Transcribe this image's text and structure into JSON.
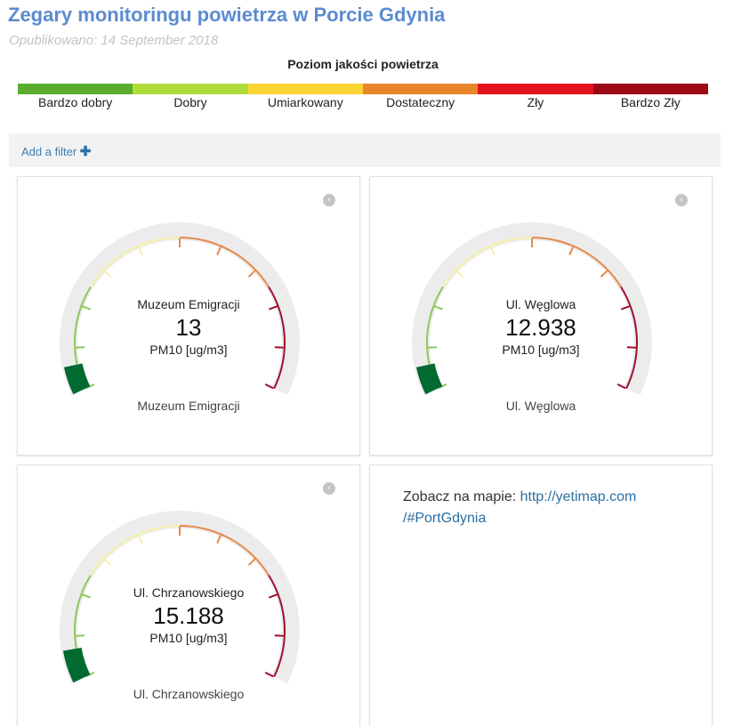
{
  "header": {
    "title": "Zegary monitoringu powietrza w Porcie Gdynia",
    "published": "Opublikowano: 14 September 2018"
  },
  "legend": {
    "title": "Poziom jakości powietrza",
    "levels": [
      {
        "label": "Bardzo dobry",
        "color": "#5aad2e"
      },
      {
        "label": "Dobry",
        "color": "#b0dc3c"
      },
      {
        "label": "Umiarkowany",
        "color": "#fcd535"
      },
      {
        "label": "Dostateczny",
        "color": "#e7862a"
      },
      {
        "label": "Zły",
        "color": "#e3141c"
      },
      {
        "label": "Bardzo Zły",
        "color": "#9a0914"
      }
    ]
  },
  "filter": {
    "label": "Add a filter",
    "icon": "plus-icon",
    "icon_glyph": "✚"
  },
  "back_icon": {
    "name": "back-circle-icon",
    "glyph": "‹"
  },
  "gauges": [
    {
      "station": "Muzeum Emigracji",
      "value": "13",
      "unit": "PM10 [ug/m3]",
      "caption": "Muzeum Emigracji",
      "fill_fraction": 0.06
    },
    {
      "station": "Ul. Węglowa",
      "value": "12.938",
      "unit": "PM10 [ug/m3]",
      "caption": "Ul. Węglowa",
      "fill_fraction": 0.06
    },
    {
      "station": "Ul. Chrzanowskiego",
      "value": "15.188",
      "unit": "PM10 [ug/m3]",
      "caption": "Ul. Chrzanowskiego",
      "fill_fraction": 0.07
    }
  ],
  "map_card": {
    "text": "Zobacz na mapie: ",
    "link_line1": "http://yetimap.com",
    "link_line2": "/#PortGdynia"
  },
  "gauge_colors": {
    "track": "#ececec",
    "fill": "#006a30",
    "bands": [
      "#8cc85a",
      "#f6f1a8",
      "#e68a4f",
      "#a0102b"
    ]
  }
}
